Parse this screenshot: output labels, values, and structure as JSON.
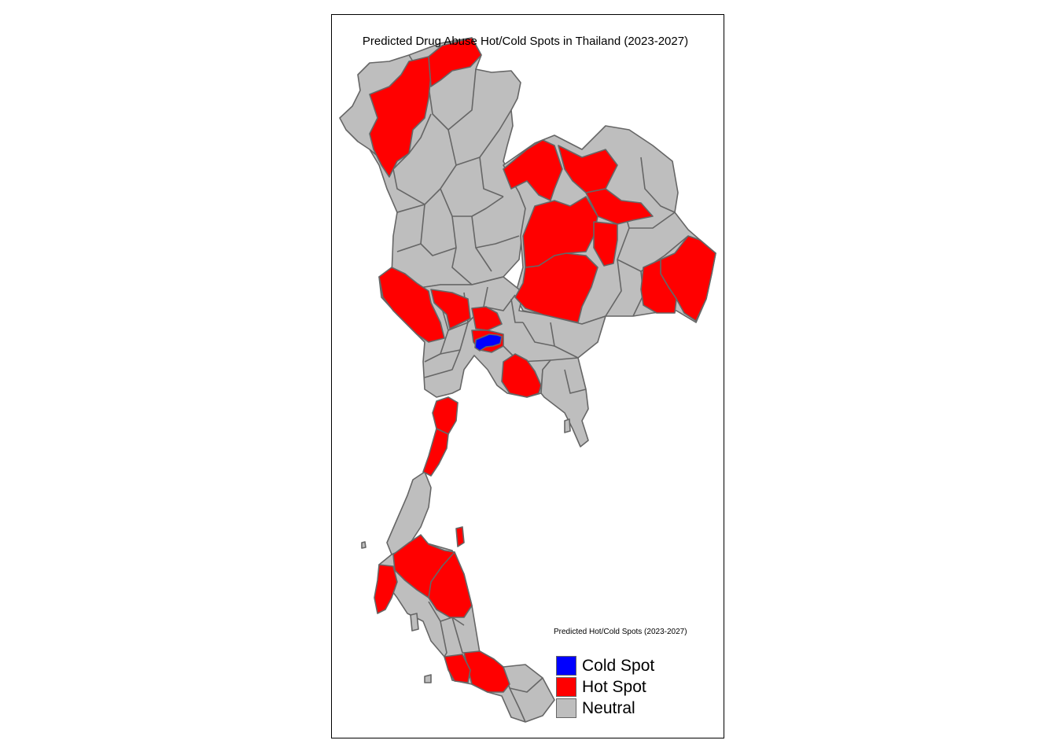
{
  "map": {
    "title": "Predicted Drug Abuse Hot/Cold Spots in Thailand (2023-2027)",
    "country": "Thailand",
    "colors": {
      "hot": "#ff0000",
      "cold": "#0000ff",
      "neutral": "#bebebe",
      "border": "#666666",
      "frame": "#000000",
      "background": "#ffffff"
    }
  },
  "legend": {
    "title": "Predicted Hot/Cold Spots (2023-2027)",
    "items": [
      {
        "label": "Cold Spot",
        "color": "#0000ff"
      },
      {
        "label": "Hot Spot",
        "color": "#ff0000"
      },
      {
        "label": "Neutral",
        "color": "#bebebe"
      }
    ]
  }
}
